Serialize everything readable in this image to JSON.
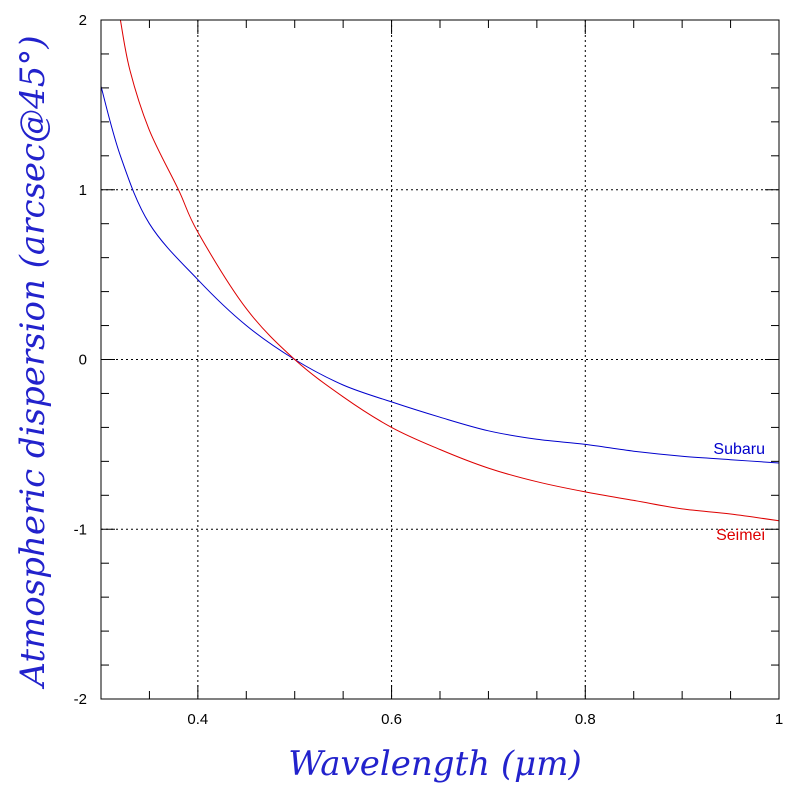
{
  "chart_data": {
    "type": "line",
    "xlabel": "Wavelength (μm)",
    "ylabel": "Atmospheric dispersion (arcsec@45°)",
    "xlim": [
      0.3,
      1.0
    ],
    "ylim": [
      -2,
      2
    ],
    "x_ticks": [
      "0.4",
      "0.6",
      "0.8",
      "1"
    ],
    "y_ticks": [
      "2",
      "1",
      "0",
      "-1",
      "-2"
    ],
    "grid": true,
    "colors": {
      "axis_title": "#2222cc",
      "axes": "#000000",
      "grid": "#000000"
    },
    "series": [
      {
        "name": "Subaru",
        "color": "#0000cc",
        "x": [
          0.3,
          0.32,
          0.35,
          0.4,
          0.45,
          0.5,
          0.55,
          0.6,
          0.65,
          0.7,
          0.75,
          0.8,
          0.85,
          0.9,
          0.95,
          1.0
        ],
        "y": [
          1.61,
          1.2,
          0.8,
          0.47,
          0.2,
          0.0,
          -0.15,
          -0.25,
          -0.34,
          -0.42,
          -0.47,
          -0.5,
          -0.54,
          -0.57,
          -0.59,
          -0.61
        ]
      },
      {
        "name": "Seimei",
        "color": "#dd0000",
        "x": [
          0.32,
          0.33,
          0.35,
          0.38,
          0.4,
          0.45,
          0.5,
          0.55,
          0.6,
          0.65,
          0.7,
          0.75,
          0.8,
          0.85,
          0.9,
          0.95,
          1.0
        ],
        "y": [
          2.0,
          1.7,
          1.35,
          1.0,
          0.75,
          0.3,
          0.0,
          -0.22,
          -0.4,
          -0.53,
          -0.64,
          -0.72,
          -0.78,
          -0.83,
          -0.88,
          -0.91,
          -0.95
        ]
      }
    ]
  }
}
